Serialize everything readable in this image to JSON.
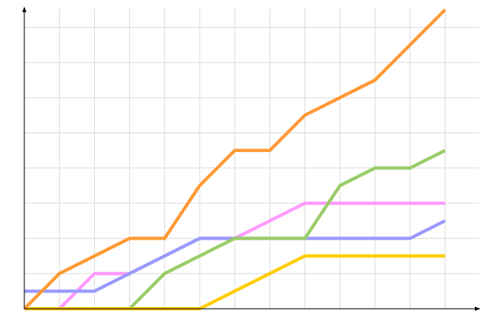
{
  "chart_data": {
    "type": "line",
    "title": "",
    "xlabel": "",
    "ylabel": "",
    "x": [
      0,
      1,
      2,
      3,
      4,
      5,
      6,
      7,
      8,
      9,
      10,
      11,
      12
    ],
    "xlim": [
      0,
      13
    ],
    "ylim": [
      0,
      8.5
    ],
    "grid": true,
    "legend": "none",
    "series": [
      {
        "color": "#ff9933",
        "values": [
          0,
          1,
          1.5,
          2,
          2,
          3.5,
          4.5,
          4.5,
          5.5,
          6,
          6.5,
          7.5,
          8.5
        ]
      },
      {
        "color": "#ff99ff",
        "values": [
          0,
          0,
          1,
          1,
          1.5,
          2,
          2,
          2.5,
          3,
          3,
          3,
          3,
          3
        ]
      },
      {
        "color": "#9999ff",
        "values": [
          0.5,
          0.5,
          0.5,
          1,
          1.5,
          2,
          2,
          2,
          2,
          2,
          2,
          2,
          2.5
        ]
      },
      {
        "color": "#99cc66",
        "values": [
          0,
          0,
          0,
          0,
          1,
          1.5,
          2,
          2,
          2,
          3.5,
          4,
          4,
          4.5
        ]
      },
      {
        "color": "#ffcc00",
        "values": [
          0,
          0,
          0,
          0,
          0,
          0,
          0.5,
          1,
          1.5,
          1.5,
          1.5,
          1.5,
          1.5
        ]
      }
    ]
  }
}
